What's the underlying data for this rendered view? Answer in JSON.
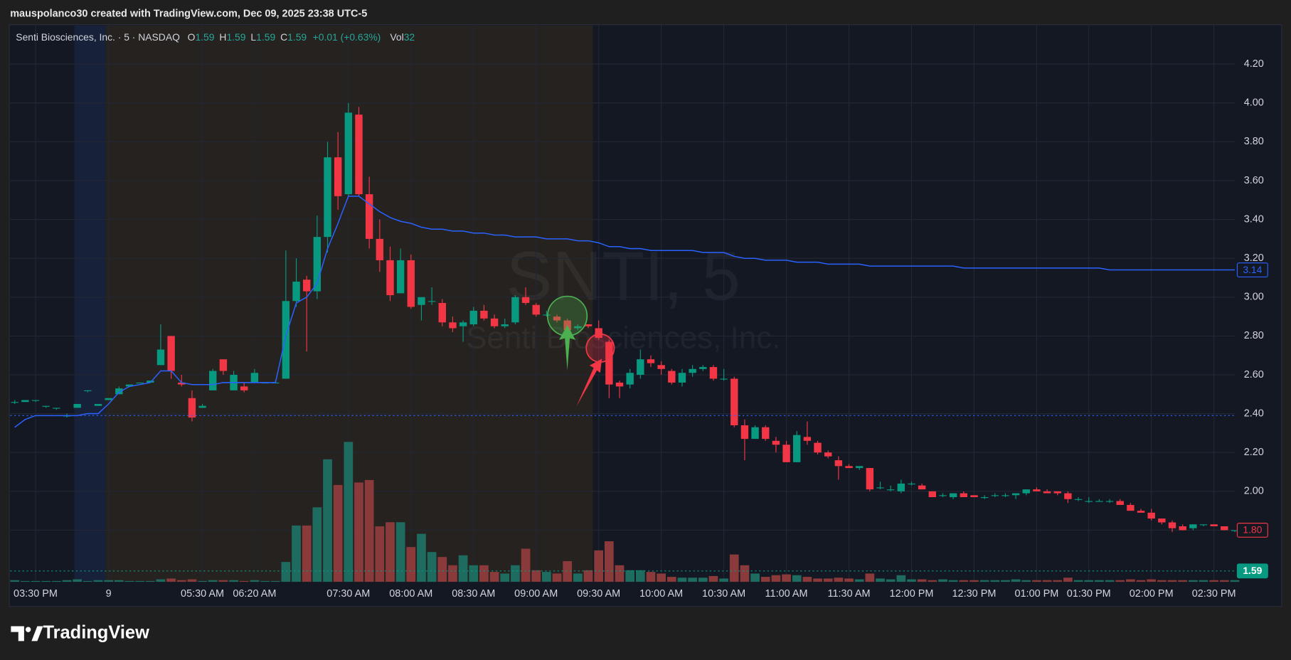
{
  "caption": "mauspolanco30 created with TradingView.com, Dec 09, 2025 23:38 UTC-5",
  "brand": "TradingView",
  "chart_data": {
    "type": "candlestick",
    "legend_title": "Senti Biosciences, Inc. · 5 · NASDAQ",
    "legend_fields": [
      {
        "label": "O",
        "value": 1.59
      },
      {
        "label": "H",
        "value": 1.59
      },
      {
        "label": "L",
        "value": 1.59
      },
      {
        "label": "C",
        "value": 1.59
      }
    ],
    "change": "+0.01 (+0.63%)",
    "volume_field": {
      "label": "Vol",
      "value": 32
    },
    "watermark": "SNTI, 5",
    "watermark_subtitle": "Senti Biosciences, Inc.",
    "up_color": "#089981",
    "down_color": "#f23645",
    "volume_up_color": "#1e6b60",
    "volume_down_color": "#8a3a3a",
    "grid": true,
    "ylim": [
      1.534,
      4.403
    ],
    "yticks": [
      {
        "value": 1.8,
        "label": "1.80"
      },
      {
        "value": 2,
        "label": "2.00"
      },
      {
        "value": 2.2,
        "label": "2.20"
      },
      {
        "value": 2.4,
        "label": "2.40"
      },
      {
        "value": 2.6,
        "label": "2.60"
      },
      {
        "value": 2.8,
        "label": "2.80"
      },
      {
        "value": 3,
        "label": "3.00"
      },
      {
        "value": 3.2,
        "label": "3.20"
      },
      {
        "value": 3.4,
        "label": "3.40"
      },
      {
        "value": 3.6,
        "label": "3.60"
      },
      {
        "value": 3.8,
        "label": "3.80"
      },
      {
        "value": 4,
        "label": "4.00"
      },
      {
        "value": 4.2,
        "label": "4.20"
      }
    ],
    "categories": [
      null,
      null,
      "03:30 PM",
      null,
      null,
      null,
      null,
      null,
      null,
      "9",
      null,
      null,
      null,
      null,
      null,
      null,
      null,
      null,
      "05:30 AM",
      null,
      null,
      null,
      null,
      "06:20 AM",
      null,
      null,
      null,
      null,
      null,
      null,
      null,
      null,
      "07:30 AM",
      null,
      null,
      null,
      null,
      null,
      "08:00 AM",
      null,
      null,
      null,
      null,
      null,
      "08:30 AM",
      null,
      null,
      null,
      null,
      null,
      "09:00 AM",
      null,
      null,
      null,
      null,
      null,
      "09:30 AM",
      null,
      null,
      null,
      null,
      null,
      "10:00 AM",
      null,
      null,
      null,
      null,
      null,
      "10:30 AM",
      null,
      null,
      null,
      null,
      null,
      "11:00 AM",
      null,
      null,
      null,
      null,
      null,
      "11:30 AM",
      null,
      null,
      null,
      null,
      null,
      "12:00 PM",
      null,
      null,
      null,
      null,
      null,
      "12:30 PM",
      null,
      null,
      null,
      null,
      null,
      "01:00 PM",
      null,
      null,
      null,
      null,
      "01:30 PM",
      null,
      null,
      null,
      null,
      null,
      "02:00 PM",
      null,
      null,
      null,
      null,
      null,
      "02:30 PM",
      null,
      null
    ],
    "open": [
      2.46,
      2.46,
      2.47,
      2.44,
      2.43,
      2.39,
      2.43,
      2.52,
      2.44,
      2.47,
      2.5,
      2.54,
      2.56,
      2.56,
      2.65,
      2.8,
      2.56,
      2.48,
      2.43,
      2.52,
      2.68,
      2.52,
      2.54,
      2.56,
      2.56,
      2.56,
      2.58,
      2.98,
      3.09,
      3.03,
      3.31,
      3.72,
      3.53,
      3.94,
      3.53,
      3.3,
      3.19,
      3.02,
      3.19,
      2.96,
      2.98,
      2.97,
      2.87,
      2.85,
      2.86,
      2.93,
      2.89,
      2.85,
      2.87,
      3.0,
      2.96,
      2.91,
      2.9,
      2.88,
      2.84,
      2.86,
      2.84,
      2.77,
      2.56,
      2.55,
      2.6,
      2.68,
      2.65,
      2.62,
      2.56,
      2.61,
      2.63,
      2.64,
      2.58,
      2.58,
      2.34,
      2.27,
      2.33,
      2.26,
      2.24,
      2.15,
      2.28,
      2.25,
      2.2,
      2.16,
      2.13,
      2.12,
      2.12,
      2.02,
      2.01,
      2.0,
      2.04,
      2.03,
      2.0,
      1.98,
      1.97,
      1.99,
      1.98,
      1.97,
      1.98,
      1.98,
      1.98,
      1.99,
      2.01,
      2.0,
      2.0,
      1.99,
      1.96,
      1.95,
      1.95,
      1.95,
      1.95,
      1.93,
      1.9,
      1.89,
      1.86,
      1.84,
      1.82,
      1.81,
      1.83,
      1.83,
      1.82,
      1.8
    ],
    "high": [
      2.47,
      2.47,
      2.47,
      2.44,
      2.43,
      2.4,
      2.45,
      2.52,
      2.45,
      2.48,
      2.54,
      2.55,
      2.56,
      2.57,
      2.86,
      2.8,
      2.6,
      2.52,
      2.45,
      2.63,
      2.68,
      2.62,
      2.56,
      2.63,
      2.56,
      2.57,
      3.24,
      3.2,
      3.11,
      3.42,
      3.8,
      3.85,
      4.0,
      3.98,
      3.62,
      3.4,
      3.26,
      3.25,
      3.22,
      3.0,
      3.05,
      2.99,
      2.9,
      2.88,
      2.95,
      2.96,
      2.91,
      2.89,
      3.01,
      3.05,
      2.97,
      2.93,
      2.91,
      2.89,
      2.86,
      2.86,
      2.88,
      2.78,
      2.57,
      2.63,
      2.73,
      2.7,
      2.67,
      2.63,
      2.63,
      2.65,
      2.65,
      2.65,
      2.63,
      2.59,
      2.37,
      2.34,
      2.34,
      2.28,
      2.26,
      2.31,
      2.36,
      2.26,
      2.21,
      2.18,
      2.14,
      2.13,
      2.12,
      2.05,
      2.03,
      2.06,
      2.05,
      2.04,
      2.0,
      1.99,
      1.99,
      2.0,
      1.98,
      1.98,
      1.99,
      1.99,
      1.99,
      2.01,
      2.02,
      2.01,
      2.0,
      2.0,
      1.97,
      1.97,
      1.96,
      1.96,
      1.96,
      1.94,
      1.91,
      1.91,
      1.86,
      1.85,
      1.83,
      1.83,
      1.83,
      1.83,
      1.82,
      1.8
    ],
    "low": [
      2.45,
      2.46,
      2.46,
      2.43,
      2.42,
      2.38,
      2.43,
      2.51,
      2.44,
      2.47,
      2.5,
      2.54,
      2.56,
      2.56,
      2.65,
      2.58,
      2.54,
      2.36,
      2.43,
      2.52,
      2.6,
      2.52,
      2.51,
      2.56,
      2.56,
      2.56,
      2.58,
      2.95,
      2.72,
      2.99,
      3.23,
      3.45,
      3.52,
      3.52,
      3.25,
      3.13,
      2.98,
      3.02,
      2.94,
      2.88,
      2.96,
      2.85,
      2.82,
      2.77,
      2.85,
      2.88,
      2.84,
      2.84,
      2.86,
      2.96,
      2.9,
      2.9,
      2.87,
      2.82,
      2.83,
      2.84,
      2.78,
      2.48,
      2.48,
      2.53,
      2.58,
      2.64,
      2.6,
      2.55,
      2.54,
      2.59,
      2.62,
      2.57,
      2.57,
      2.33,
      2.16,
      2.27,
      2.26,
      2.2,
      2.15,
      2.15,
      2.24,
      2.19,
      2.17,
      2.06,
      2.12,
      2.11,
      2.0,
      2.01,
      2.0,
      1.99,
      2.03,
      2.01,
      1.97,
      1.97,
      1.96,
      1.97,
      1.97,
      1.96,
      1.97,
      1.97,
      1.96,
      1.98,
      2.0,
      1.99,
      1.98,
      1.94,
      1.95,
      1.94,
      1.95,
      1.94,
      1.93,
      1.9,
      1.89,
      1.85,
      1.83,
      1.79,
      1.8,
      1.8,
      1.82,
      1.82,
      1.8,
      1.79
    ],
    "close": [
      2.46,
      2.47,
      2.47,
      2.44,
      2.43,
      2.39,
      2.45,
      2.52,
      2.45,
      2.48,
      2.53,
      2.55,
      2.56,
      2.57,
      2.73,
      2.62,
      2.55,
      2.38,
      2.44,
      2.62,
      2.62,
      2.6,
      2.52,
      2.61,
      2.56,
      2.56,
      2.98,
      3.08,
      3.03,
      3.31,
      3.72,
      3.52,
      3.95,
      3.53,
      3.3,
      3.19,
      3.01,
      3.19,
      2.95,
      3.0,
      2.98,
      2.87,
      2.84,
      2.87,
      2.93,
      2.89,
      2.85,
      2.86,
      3.0,
      2.97,
      2.91,
      2.91,
      2.88,
      2.83,
      2.85,
      2.85,
      2.79,
      2.55,
      2.54,
      2.61,
      2.68,
      2.66,
      2.63,
      2.56,
      2.61,
      2.63,
      2.64,
      2.58,
      2.58,
      2.34,
      2.27,
      2.33,
      2.27,
      2.24,
      2.15,
      2.29,
      2.26,
      2.2,
      2.18,
      2.13,
      2.12,
      2.13,
      2.01,
      2.02,
      2.01,
      2.04,
      2.04,
      2.01,
      1.97,
      1.98,
      1.99,
      1.97,
      1.97,
      1.97,
      1.98,
      1.98,
      1.99,
      2.01,
      2.0,
      1.99,
      1.99,
      1.96,
      1.96,
      1.95,
      1.95,
      1.95,
      1.93,
      1.9,
      1.89,
      1.86,
      1.84,
      1.81,
      1.8,
      1.83,
      1.83,
      1.82,
      1.8,
      1.8
    ],
    "volume": [
      2,
      1,
      1,
      1,
      1,
      2,
      3,
      1,
      2,
      2,
      2,
      1,
      1,
      1,
      3,
      4,
      2,
      3,
      1,
      2,
      2,
      2,
      1,
      2,
      1,
      1,
      24,
      68,
      68,
      90,
      148,
      117,
      169,
      120,
      123,
      67,
      72,
      72,
      42,
      58,
      36,
      30,
      20,
      32,
      20,
      20,
      12,
      10,
      20,
      40,
      14,
      12,
      10,
      25,
      10,
      14,
      38,
      49,
      20,
      14,
      14,
      12,
      10,
      6,
      5,
      5,
      5,
      7,
      4,
      33,
      20,
      10,
      6,
      8,
      9,
      8,
      6,
      4,
      4,
      5,
      4,
      3,
      10,
      4,
      3,
      8,
      3,
      3,
      2,
      3,
      2,
      2,
      2,
      2,
      2,
      2,
      3,
      2,
      2,
      2,
      2,
      5,
      2,
      2,
      2,
      2,
      2,
      3,
      2,
      3,
      2,
      2,
      2,
      2,
      2,
      2,
      2,
      2
    ],
    "vwap": {
      "color": "#2962ff",
      "values": [
        2.33,
        2.37,
        2.39,
        2.39,
        2.39,
        2.39,
        2.39,
        2.4,
        2.4,
        2.45,
        2.51,
        2.54,
        2.55,
        2.56,
        2.62,
        2.62,
        2.56,
        2.55,
        2.55,
        2.55,
        2.56,
        2.56,
        2.56,
        2.56,
        2.56,
        2.56,
        2.8,
        2.97,
        3.0,
        3.07,
        3.25,
        3.38,
        3.52,
        3.52,
        3.48,
        3.44,
        3.41,
        3.39,
        3.38,
        3.36,
        3.35,
        3.35,
        3.34,
        3.34,
        3.33,
        3.33,
        3.32,
        3.32,
        3.31,
        3.31,
        3.31,
        3.3,
        3.3,
        3.3,
        3.29,
        3.29,
        3.28,
        3.26,
        3.26,
        3.25,
        3.25,
        3.24,
        3.24,
        3.24,
        3.24,
        3.24,
        3.23,
        3.23,
        3.23,
        3.21,
        3.2,
        3.2,
        3.19,
        3.19,
        3.19,
        3.18,
        3.18,
        3.18,
        3.17,
        3.17,
        3.17,
        3.17,
        3.16,
        3.16,
        3.16,
        3.16,
        3.16,
        3.16,
        3.16,
        3.16,
        3.16,
        3.15,
        3.15,
        3.15,
        3.15,
        3.15,
        3.15,
        3.15,
        3.15,
        3.15,
        3.15,
        3.15,
        3.15,
        3.15,
        3.15,
        3.14,
        3.14,
        3.14,
        3.14,
        3.14,
        3.14,
        3.14,
        3.14,
        3.14,
        3.14,
        3.14,
        3.14,
        3.14
      ]
    },
    "reference_lines": [
      {
        "value": 2.39,
        "color": "#2962ff"
      },
      {
        "value": 1.59,
        "color": "#089981"
      }
    ],
    "price_labels": [
      {
        "value": 3.14,
        "label": "3.14",
        "color": "#2962ff",
        "filled": false
      },
      {
        "value": 1.8,
        "label": "1.80",
        "color": "#f23645",
        "filled": false
      },
      {
        "value": 1.59,
        "label": "1.59",
        "color": "#089981",
        "filled": true
      }
    ]
  }
}
